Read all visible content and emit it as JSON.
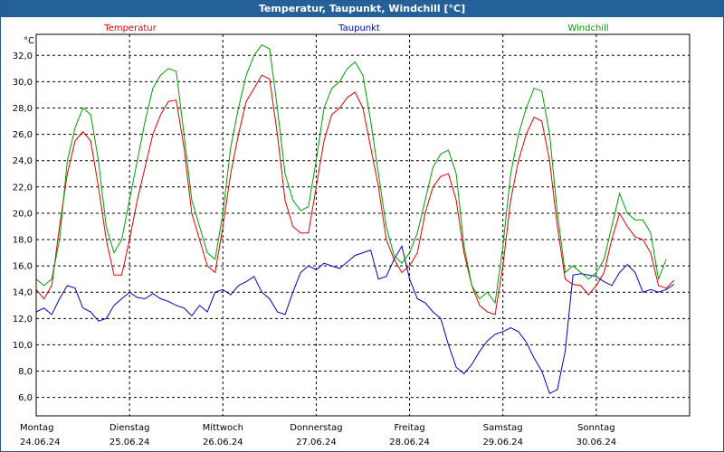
{
  "window": {
    "title": "Temperatur, Taupunkt, Windchill [°C]"
  },
  "chart_data": {
    "type": "line",
    "title": "Temperatur, Taupunkt, Windchill [°C]",
    "ylabel": "°C",
    "ylim": [
      4.6,
      33.6
    ],
    "yticks": [
      6.0,
      8.0,
      10.0,
      12.0,
      14.0,
      16.0,
      18.0,
      20.0,
      22.0,
      24.0,
      26.0,
      28.0,
      30.0,
      32.0
    ],
    "ytick_labels": [
      "6,0",
      "8,0",
      "10,0",
      "12,0",
      "14,0",
      "16,0",
      "18,0",
      "20,0",
      "22,0",
      "24,0",
      "26,0",
      "28,0",
      "30,0",
      "32,0"
    ],
    "x_unit": "hours since 24.06.24 00:00",
    "xlim": [
      0,
      168
    ],
    "grid": true,
    "days": [
      {
        "day": "Montag",
        "date": "24.06.24",
        "x": 0
      },
      {
        "day": "Dienstag",
        "date": "25.06.24",
        "x": 24
      },
      {
        "day": "Mittwoch",
        "date": "26.06.24",
        "x": 48
      },
      {
        "day": "Donnerstag",
        "date": "27.06.24",
        "x": 72
      },
      {
        "day": "Freitag",
        "date": "28.06.24",
        "x": 96
      },
      {
        "day": "Samstag",
        "date": "29.06.24",
        "x": 120
      },
      {
        "day": "Sonntag",
        "date": "30.06.24",
        "x": 144
      }
    ],
    "series": [
      {
        "name": "Temperatur",
        "color": "#e00000",
        "points": [
          [
            0,
            14.2
          ],
          [
            2,
            13.5
          ],
          [
            4,
            14.5
          ],
          [
            6,
            19
          ],
          [
            8,
            23
          ],
          [
            10,
            25.5
          ],
          [
            12,
            26.2
          ],
          [
            14,
            25.5
          ],
          [
            16,
            22
          ],
          [
            18,
            18
          ],
          [
            20,
            15.3
          ],
          [
            22,
            15.3
          ],
          [
            24,
            18
          ],
          [
            26,
            21
          ],
          [
            28,
            23.5
          ],
          [
            30,
            26
          ],
          [
            32,
            27.5
          ],
          [
            34,
            28.5
          ],
          [
            36,
            28.6
          ],
          [
            38,
            25
          ],
          [
            40,
            20
          ],
          [
            42,
            18
          ],
          [
            44,
            16
          ],
          [
            46,
            15.5
          ],
          [
            48,
            19
          ],
          [
            50,
            23
          ],
          [
            52,
            26
          ],
          [
            54,
            28.5
          ],
          [
            56,
            29.5
          ],
          [
            58,
            30.5
          ],
          [
            60,
            30.2
          ],
          [
            62,
            26
          ],
          [
            64,
            21
          ],
          [
            66,
            19
          ],
          [
            68,
            18.5
          ],
          [
            70,
            18.5
          ],
          [
            72,
            22
          ],
          [
            74,
            25.5
          ],
          [
            76,
            27.5
          ],
          [
            78,
            28
          ],
          [
            80,
            28.8
          ],
          [
            82,
            29.2
          ],
          [
            84,
            28
          ],
          [
            86,
            25
          ],
          [
            88,
            22
          ],
          [
            90,
            18
          ],
          [
            92,
            16.5
          ],
          [
            94,
            15.5
          ],
          [
            96,
            16
          ],
          [
            98,
            17
          ],
          [
            100,
            20
          ],
          [
            102,
            22
          ],
          [
            104,
            22.8
          ],
          [
            106,
            23
          ],
          [
            108,
            21
          ],
          [
            110,
            17
          ],
          [
            112,
            14.5
          ],
          [
            114,
            13
          ],
          [
            116,
            12.5
          ],
          [
            118,
            12.3
          ],
          [
            120,
            16
          ],
          [
            122,
            21
          ],
          [
            124,
            24
          ],
          [
            126,
            26
          ],
          [
            128,
            27.3
          ],
          [
            130,
            27
          ],
          [
            132,
            24
          ],
          [
            134,
            19
          ],
          [
            136,
            15
          ],
          [
            138,
            14.6
          ],
          [
            140,
            14.5
          ],
          [
            142,
            13.8
          ],
          [
            144,
            14.5
          ],
          [
            146,
            15.5
          ],
          [
            148,
            18
          ],
          [
            150,
            20
          ],
          [
            152,
            19
          ],
          [
            154,
            18.2
          ],
          [
            156,
            18
          ],
          [
            158,
            17
          ],
          [
            160,
            14.5
          ],
          [
            162,
            14.3
          ],
          [
            164,
            14.9
          ]
        ]
      },
      {
        "name": "Taupunkt",
        "color": "#0000c0",
        "points": [
          [
            0,
            12.5
          ],
          [
            2,
            12.8
          ],
          [
            4,
            12.3
          ],
          [
            6,
            13.5
          ],
          [
            8,
            14.5
          ],
          [
            10,
            14.3
          ],
          [
            12,
            12.8
          ],
          [
            14,
            12.5
          ],
          [
            16,
            11.8
          ],
          [
            18,
            12
          ],
          [
            20,
            13
          ],
          [
            22,
            13.5
          ],
          [
            24,
            14
          ],
          [
            26,
            13.6
          ],
          [
            28,
            13.5
          ],
          [
            30,
            13.9
          ],
          [
            32,
            13.5
          ],
          [
            34,
            13.3
          ],
          [
            36,
            13
          ],
          [
            38,
            12.8
          ],
          [
            40,
            12.2
          ],
          [
            42,
            13
          ],
          [
            44,
            12.5
          ],
          [
            46,
            14
          ],
          [
            48,
            14.2
          ],
          [
            50,
            13.8
          ],
          [
            52,
            14.5
          ],
          [
            54,
            14.8
          ],
          [
            56,
            15.2
          ],
          [
            58,
            14
          ],
          [
            60,
            13.5
          ],
          [
            62,
            12.5
          ],
          [
            64,
            12.3
          ],
          [
            66,
            14
          ],
          [
            68,
            15.5
          ],
          [
            70,
            16
          ],
          [
            72,
            15.7
          ],
          [
            74,
            16.2
          ],
          [
            76,
            16
          ],
          [
            78,
            15.8
          ],
          [
            80,
            16.3
          ],
          [
            82,
            16.8
          ],
          [
            84,
            17
          ],
          [
            86,
            17.2
          ],
          [
            88,
            15
          ],
          [
            90,
            15.2
          ],
          [
            92,
            16.5
          ],
          [
            94,
            17.5
          ],
          [
            96,
            15
          ],
          [
            98,
            13.5
          ],
          [
            100,
            13.2
          ],
          [
            102,
            12.5
          ],
          [
            104,
            12
          ],
          [
            106,
            10
          ],
          [
            108,
            8.3
          ],
          [
            110,
            7.8
          ],
          [
            112,
            8.5
          ],
          [
            114,
            9.5
          ],
          [
            116,
            10.3
          ],
          [
            118,
            10.8
          ],
          [
            120,
            11
          ],
          [
            122,
            11.3
          ],
          [
            124,
            11
          ],
          [
            126,
            10.2
          ],
          [
            128,
            9
          ],
          [
            130,
            8
          ],
          [
            132,
            6.3
          ],
          [
            134,
            6.6
          ],
          [
            136,
            9.5
          ],
          [
            138,
            15.3
          ],
          [
            140,
            15.4
          ],
          [
            142,
            15.3
          ],
          [
            144,
            15.2
          ],
          [
            146,
            14.8
          ],
          [
            148,
            14.5
          ],
          [
            150,
            15.5
          ],
          [
            152,
            16.1
          ],
          [
            154,
            15.5
          ],
          [
            156,
            14
          ],
          [
            158,
            14.2
          ],
          [
            160,
            14
          ],
          [
            162,
            14.2
          ],
          [
            164,
            14.6
          ]
        ]
      },
      {
        "name": "Windchill",
        "color": "#00a000",
        "points": [
          [
            0,
            15
          ],
          [
            2,
            14.5
          ],
          [
            4,
            15
          ],
          [
            6,
            18
          ],
          [
            8,
            24
          ],
          [
            10,
            26.5
          ],
          [
            12,
            28
          ],
          [
            14,
            27.5
          ],
          [
            16,
            24
          ],
          [
            18,
            19
          ],
          [
            20,
            17
          ],
          [
            22,
            18
          ],
          [
            24,
            21
          ],
          [
            26,
            24
          ],
          [
            28,
            27
          ],
          [
            30,
            29.5
          ],
          [
            32,
            30.5
          ],
          [
            34,
            31
          ],
          [
            36,
            30.8
          ],
          [
            38,
            26
          ],
          [
            40,
            21
          ],
          [
            42,
            19
          ],
          [
            44,
            17
          ],
          [
            46,
            16.5
          ],
          [
            48,
            20
          ],
          [
            50,
            25
          ],
          [
            52,
            28
          ],
          [
            54,
            30.5
          ],
          [
            56,
            32
          ],
          [
            58,
            32.8
          ],
          [
            60,
            32.5
          ],
          [
            62,
            28
          ],
          [
            64,
            23
          ],
          [
            66,
            21
          ],
          [
            68,
            20.2
          ],
          [
            70,
            20.5
          ],
          [
            72,
            24
          ],
          [
            74,
            28
          ],
          [
            76,
            29.5
          ],
          [
            78,
            30
          ],
          [
            80,
            31
          ],
          [
            82,
            31.5
          ],
          [
            84,
            30.5
          ],
          [
            86,
            27
          ],
          [
            88,
            23
          ],
          [
            90,
            19
          ],
          [
            92,
            16.8
          ],
          [
            94,
            16.2
          ],
          [
            96,
            17
          ],
          [
            98,
            18.5
          ],
          [
            100,
            21
          ],
          [
            102,
            23.5
          ],
          [
            104,
            24.5
          ],
          [
            106,
            24.8
          ],
          [
            108,
            23
          ],
          [
            110,
            17.5
          ],
          [
            112,
            14.5
          ],
          [
            114,
            13.5
          ],
          [
            116,
            14
          ],
          [
            118,
            13.2
          ],
          [
            120,
            17.5
          ],
          [
            122,
            23
          ],
          [
            124,
            26
          ],
          [
            126,
            28
          ],
          [
            128,
            29.5
          ],
          [
            130,
            29.3
          ],
          [
            132,
            26
          ],
          [
            134,
            20
          ],
          [
            136,
            15.5
          ],
          [
            138,
            16
          ],
          [
            140,
            15.5
          ],
          [
            142,
            15
          ],
          [
            144,
            15.5
          ],
          [
            146,
            16.5
          ],
          [
            148,
            19
          ],
          [
            150,
            21.5
          ],
          [
            152,
            20
          ],
          [
            154,
            19.5
          ],
          [
            156,
            19.5
          ],
          [
            158,
            18.5
          ],
          [
            160,
            15
          ],
          [
            162,
            16.5
          ]
        ]
      }
    ]
  }
}
